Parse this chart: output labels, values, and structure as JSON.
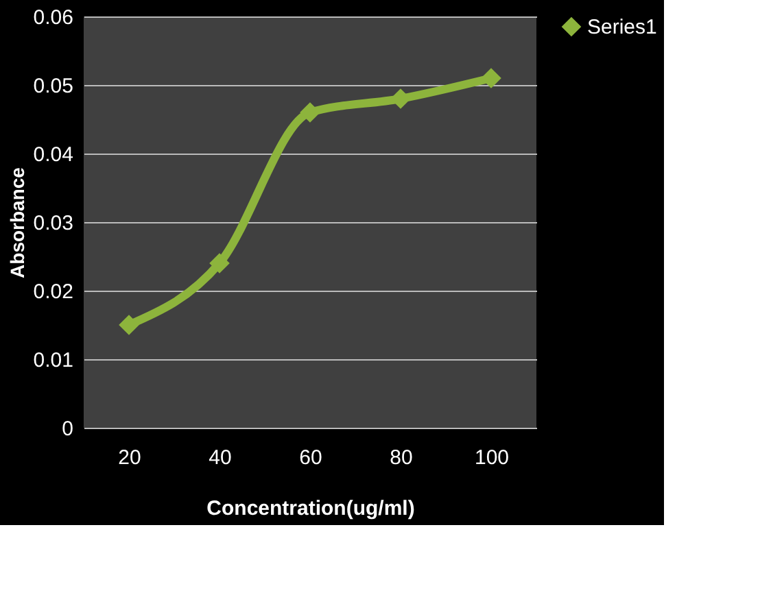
{
  "chart_data": {
    "type": "line",
    "xlabel": "Concentration(ug/ml)",
    "ylabel": "Absorbance",
    "categories": [
      "20",
      "40",
      "60",
      "80",
      "100"
    ],
    "series": [
      {
        "name": "Series1",
        "color": "#8db43c",
        "values": [
          0.015,
          0.024,
          0.046,
          0.048,
          0.051
        ]
      }
    ],
    "ylim": [
      0,
      0.06
    ],
    "yticks": [
      0,
      0.01,
      0.02,
      0.03,
      0.04,
      0.05,
      0.06
    ],
    "grid": "y",
    "legend": "right",
    "marker": "diamond",
    "line_style": "solid"
  }
}
